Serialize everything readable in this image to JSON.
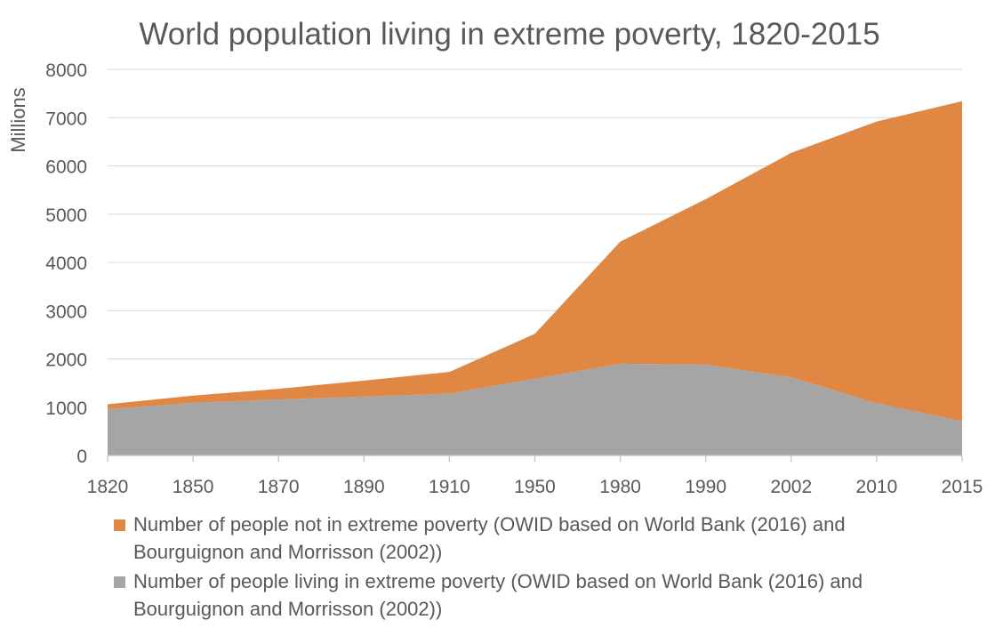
{
  "chart_data": {
    "type": "area",
    "stacked": true,
    "title": "World population living in extreme poverty, 1820-2015",
    "xlabel": "",
    "ylabel": "Millions",
    "categories": [
      "1820",
      "1850",
      "1870",
      "1890",
      "1910",
      "1950",
      "1980",
      "1990",
      "2002",
      "2010",
      "2015"
    ],
    "ylim": [
      0,
      8000
    ],
    "yticks": [
      "0",
      "1000",
      "2000",
      "3000",
      "4000",
      "5000",
      "6000",
      "7000",
      "8000"
    ],
    "grid": true,
    "legend_position": "bottom",
    "series": [
      {
        "name": "Number of people living in extreme poverty (OWID based on World Bank (2016) and Bourguignon and Morrisson (2002))",
        "color": "#a5a5a5",
        "values": [
          960,
          1090,
          1160,
          1220,
          1280,
          1590,
          1900,
          1880,
          1620,
          1080,
          710
        ]
      },
      {
        "name": "Number of people not in extreme poverty (OWID based on World Bank (2016) and Bourguignon and Morrisson (2002))",
        "color": "#e08744",
        "values": [
          100,
          150,
          220,
          330,
          450,
          930,
          2530,
          3430,
          4650,
          5840,
          6630
        ]
      }
    ],
    "legend": [
      {
        "line1": "Number of people not in extreme poverty (OWID based on World Bank (2016) and",
        "line2": "Bourguignon and Morrisson (2002))",
        "color": "#e08744"
      },
      {
        "line1": "Number of people living in extreme poverty (OWID based on World Bank (2016) and",
        "line2": "Bourguignon and Morrisson (2002))",
        "color": "#a5a5a5"
      }
    ]
  }
}
